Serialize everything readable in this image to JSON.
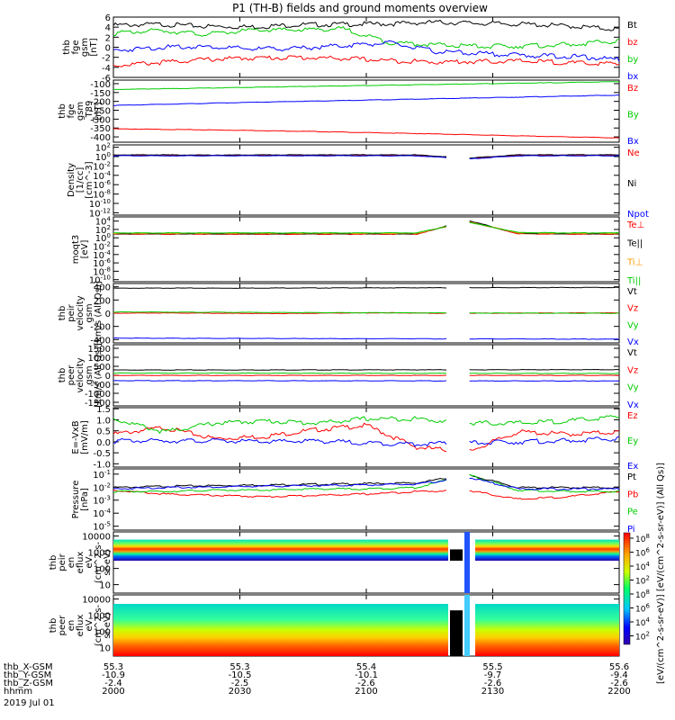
{
  "title": "P1 (TH-B) fields and ground moments overview",
  "date": "2019 Jul 01",
  "colorbar": {
    "label": "[eV/(cm^2-s-sr-eV)] [eV/(cm^2-s-sr-eV)] (All Qs)]",
    "tick_labels": [
      "10^8",
      "10^6",
      "10^4",
      "10^2",
      "10^8",
      "10^6",
      "10^4",
      "10^2"
    ]
  },
  "ephemeris": {
    "row_labels": [
      "thb_X-GSM",
      "thb_Y-GSM",
      "thb_Z-GSM",
      "hhmm"
    ],
    "columns": [
      [
        "55.3",
        "-10.9",
        "-2.4",
        "2000"
      ],
      [
        "55.3",
        "-10.5",
        "-2.5",
        "2030"
      ],
      [
        "55.4",
        "-10.1",
        "-2.6",
        "2100"
      ],
      [
        "55.5",
        "-9.7",
        "-2.6",
        "2130"
      ],
      [
        "55.6",
        "-9.4",
        "-2.6",
        "2200"
      ]
    ]
  },
  "chart_data": [
    {
      "type": "line",
      "ylabel": [
        "thb",
        "fge",
        "gsm",
        "[nT]"
      ],
      "yticks": [
        "6",
        "4",
        "2",
        "0",
        "-2",
        "-4",
        "-6"
      ],
      "ylim": [
        -6,
        6
      ],
      "x_range": [
        "2000",
        "2200"
      ],
      "series": [
        {
          "name": "Bt",
          "color": "#000000",
          "values": [
            4.6,
            4.8,
            4.4,
            4.3,
            4.7,
            4.8,
            4.9,
            5.2,
            5.0,
            4.8,
            4.4,
            3.8
          ]
        },
        {
          "name": "bz",
          "color": "#ff0000",
          "values": [
            -3.4,
            -2.8,
            -2.2,
            -1.9,
            -1.8,
            -2.0,
            -2.4,
            -2.7,
            -2.6,
            -2.5,
            -2.9,
            -3.1
          ]
        },
        {
          "name": "by",
          "color": "#00cc00",
          "values": [
            3.0,
            3.6,
            2.8,
            3.6,
            3.7,
            3.9,
            1.2,
            0.7,
            0.4,
            0.5,
            0.8,
            1.5
          ]
        },
        {
          "name": "bx",
          "color": "#0000ff",
          "values": [
            -0.4,
            0.2,
            0.4,
            -0.1,
            0.0,
            0.6,
            1.1,
            -0.6,
            -1.0,
            -1.4,
            -1.6,
            -2.2
          ]
        }
      ]
    },
    {
      "type": "line",
      "ylabel": [
        "thb",
        "fge",
        "gsm",
        "_T89",
        "[nT]"
      ],
      "yticks": [
        "-100",
        "-150",
        "-200",
        "-250",
        "-300",
        "-350",
        "-400"
      ],
      "ylim": [
        -430,
        -80
      ],
      "x_range": [
        "2000",
        "2200"
      ],
      "series": [
        {
          "name": "Bz",
          "color": "#ff0000",
          "values": [
            -354,
            -358,
            -362,
            -368,
            -375,
            -382,
            -390,
            -398,
            -405
          ]
        },
        {
          "name": "By",
          "color": "#00cc00",
          "values": [
            -132,
            -127,
            -121,
            -115,
            -110,
            -104,
            -99,
            -94,
            -88
          ]
        },
        {
          "name": "Bx",
          "color": "#0000ff",
          "values": [
            -222,
            -214,
            -206,
            -199,
            -192,
            -185,
            -178,
            -171,
            -164
          ]
        }
      ]
    },
    {
      "type": "line",
      "ylabel": [
        "Density",
        "[1/cc]",
        "[cm^-3]"
      ],
      "yticks": [
        "10^2",
        "10^0",
        "10^-2",
        "10^-4",
        "10^-6",
        "10^-8",
        "10^-10",
        "10^-12"
      ],
      "ylim": [
        -12.5,
        2.5
      ],
      "x_range": [
        "2000",
        "2200"
      ],
      "series": [
        {
          "name": "Ne",
          "color": "#ff0000",
          "values": [
            0.3,
            0.3,
            0.25,
            0.3,
            0.3,
            0.3,
            0.3,
            -0.4,
            0.3,
            0.3,
            0.3
          ]
        },
        {
          "name": "Ni",
          "color": "#000000",
          "values": [
            0.4,
            0.4,
            0.35,
            0.4,
            0.4,
            0.4,
            0.4,
            -0.3,
            0.4,
            0.4,
            0.4
          ]
        },
        {
          "name": "Npot",
          "color": "#0000ff",
          "values": [
            0.2,
            0.2,
            0.2,
            0.2,
            0.2,
            0.2,
            0.2,
            -0.5,
            0.2,
            0.2,
            0.2
          ]
        }
      ]
    },
    {
      "type": "line",
      "ylabel": [
        "moqt3",
        "[eV]"
      ],
      "yticks": [
        "10^4",
        "10^2",
        "10^0",
        "10^-2",
        "10^-4",
        "10^-6",
        "10^-8",
        "10^-10"
      ],
      "ylim": [
        -10.5,
        5
      ],
      "x_range": [
        "2000",
        "2200"
      ],
      "series": [
        {
          "name": "Te⊥",
          "color": "#ff0000",
          "values": [
            0.9,
            0.9,
            0.9,
            0.9,
            0.9,
            0.9,
            0.9,
            4.0,
            1.0,
            0.9,
            0.9
          ]
        },
        {
          "name": "Te||",
          "color": "#000000",
          "values": [
            1.0,
            1.0,
            1.0,
            1.0,
            1.0,
            1.0,
            1.0,
            4.2,
            1.1,
            1.0,
            1.0
          ]
        },
        {
          "name": "Ti⊥",
          "color": "#ff9900",
          "values": [
            1.1,
            1.1,
            1.1,
            1.1,
            1.1,
            1.1,
            1.1,
            3.9,
            1.2,
            1.1,
            1.1
          ]
        },
        {
          "name": "Ti||",
          "color": "#00cc00",
          "values": [
            1.2,
            1.2,
            1.2,
            1.2,
            1.2,
            1.2,
            1.2,
            3.8,
            1.3,
            1.2,
            1.2
          ]
        }
      ]
    },
    {
      "type": "line",
      "ylabel": [
        "thb",
        "peir",
        "velocity",
        "gsm",
        "[km/s (All Qs)]"
      ],
      "yticks": [
        "400",
        "200",
        "0",
        "-200",
        "-400"
      ],
      "ylim": [
        -450,
        450
      ],
      "x_range": [
        "2000",
        "2200"
      ],
      "series": [
        {
          "name": "Vt",
          "color": "#000000",
          "values": [
            380,
            382,
            381,
            384,
            385,
            386,
            387,
            389,
            390,
            392
          ]
        },
        {
          "name": "Vz",
          "color": "#ff0000",
          "values": [
            2,
            5,
            0,
            -3,
            4,
            8,
            0,
            3,
            5,
            6
          ]
        },
        {
          "name": "Vy",
          "color": "#00cc00",
          "values": [
            20,
            18,
            15,
            12,
            10,
            8,
            5,
            3,
            2,
            0
          ]
        },
        {
          "name": "Vx",
          "color": "#0000ff",
          "values": [
            -375,
            -378,
            -380,
            -382,
            -384,
            -385,
            -387,
            -388,
            -390,
            -392
          ]
        }
      ]
    },
    {
      "type": "line",
      "ylabel": [
        "thb",
        "peer",
        "velocity",
        "gsm",
        "[km/s (All Qs)]"
      ],
      "yticks": [
        "1500",
        "1000",
        "500",
        "0",
        "-500",
        "-1000",
        "-1500"
      ],
      "ylim": [
        -1700,
        1700
      ],
      "x_range": [
        "2000",
        "2200"
      ],
      "series": [
        {
          "name": "Vt",
          "color": "#000000",
          "values": [
            300,
            302,
            305,
            308,
            310,
            312,
            315,
            318,
            320
          ]
        },
        {
          "name": "Vz",
          "color": "#ff0000",
          "values": [
            0,
            0,
            0,
            0,
            0,
            0,
            0,
            0,
            0
          ]
        },
        {
          "name": "Vy",
          "color": "#00cc00",
          "values": [
            130,
            128,
            125,
            122,
            120,
            118,
            115,
            112,
            110
          ]
        },
        {
          "name": "Vx",
          "color": "#0000ff",
          "values": [
            -290,
            -292,
            -295,
            -298,
            -300,
            -303,
            -305,
            -308,
            -310
          ]
        }
      ]
    },
    {
      "type": "line",
      "ylabel": [
        "E=-VxB",
        "[mV/m]"
      ],
      "yticks": [
        "1.5",
        "1.0",
        "0.5",
        "0.0",
        "-0.5",
        "-1.0"
      ],
      "ylim": [
        -1.15,
        1.55
      ],
      "x_range": [
        "2000",
        "2200"
      ],
      "series": [
        {
          "name": "Ez",
          "color": "#ff0000",
          "values": [
            0.4,
            0.7,
            0.2,
            0.3,
            0.6,
            0.8,
            -0.2,
            -0.4,
            0.5,
            0.4,
            0.5
          ]
        },
        {
          "name": "Ey",
          "color": "#00cc00",
          "values": [
            1.1,
            0.5,
            0.9,
            1.0,
            0.9,
            1.1,
            1.1,
            0.9,
            0.9,
            1.0,
            1.2
          ]
        },
        {
          "name": "Ex",
          "color": "#0000ff",
          "values": [
            0.1,
            0.1,
            0.1,
            0.05,
            0.1,
            0.0,
            -0.05,
            0.0,
            0.05,
            0.1,
            0.2
          ]
        }
      ]
    },
    {
      "type": "line",
      "ylabel": [
        "Pressure",
        "[nPa]"
      ],
      "yticks": [
        "10^-1",
        "10^-2",
        "10^-3",
        "10^-4",
        "10^-5"
      ],
      "ylim": [
        -5.3,
        -0.6
      ],
      "x_range": [
        "2000",
        "2200"
      ],
      "series": [
        {
          "name": "Pt",
          "color": "#000000",
          "values": [
            -2.0,
            -1.9,
            -1.85,
            -1.8,
            -1.75,
            -1.7,
            -1.65,
            -1.0,
            -2.0,
            -2.0,
            -2.0
          ]
        },
        {
          "name": "Pb",
          "color": "#ff0000",
          "values": [
            -2.2,
            -2.5,
            -2.6,
            -2.7,
            -2.6,
            -2.5,
            -2.3,
            -2.2,
            -2.9,
            -2.7,
            -2.3
          ]
        },
        {
          "name": "Pe",
          "color": "#00cc00",
          "values": [
            -2.3,
            -2.3,
            -2.2,
            -2.2,
            -2.1,
            -2.1,
            -2.0,
            -1.0,
            -2.2,
            -2.3,
            -2.3
          ]
        },
        {
          "name": "Pi",
          "color": "#0000ff",
          "values": [
            -2.1,
            -2.0,
            -1.95,
            -1.9,
            -1.85,
            -1.8,
            -1.75,
            -1.2,
            -2.1,
            -2.1,
            -2.1
          ]
        }
      ]
    },
    {
      "type": "heatmap",
      "ylabel": [
        "thb",
        "peir",
        "en",
        "eflux",
        "eV",
        "(cm^2-s-",
        "sr-eV)"
      ],
      "yticks": [
        "10000",
        "1000",
        "100",
        "10"
      ],
      "ylim": [
        3,
        18000
      ]
    },
    {
      "type": "heatmap",
      "ylabel": [
        "thb",
        "peer",
        "en",
        "eflux",
        "eV",
        "(cm^2-s-",
        "sr-eV)"
      ],
      "yticks": [
        "10000",
        "1000",
        "100",
        "10"
      ],
      "ylim": [
        3,
        18000
      ]
    }
  ]
}
